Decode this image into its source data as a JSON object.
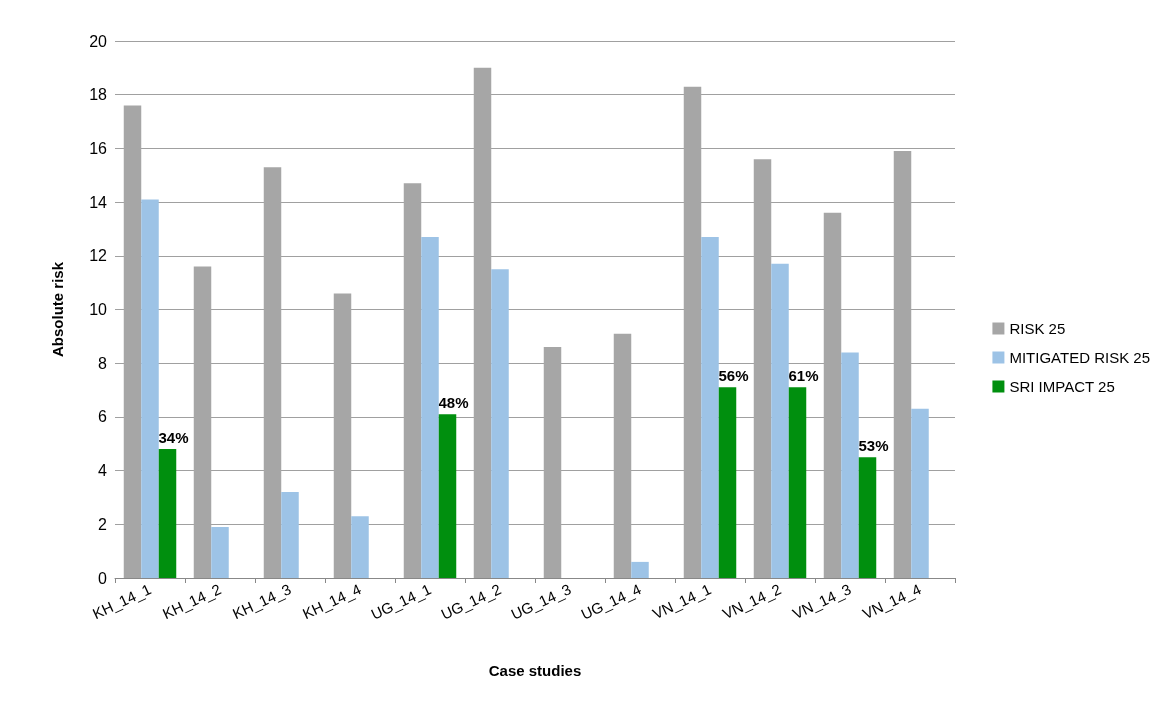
{
  "chart_data": {
    "type": "bar",
    "xlabel": "Case studies",
    "ylabel": "Absolute risk",
    "categories": [
      "KH_14_1",
      "KH_14_2",
      "KH_14_3",
      "KH_14_4",
      "UG_14_1",
      "UG_14_2",
      "UG_14_3",
      "UG_14_4",
      "VN_14_1",
      "VN_14_2",
      "VN_14_3",
      "VN_14_4"
    ],
    "series": [
      {
        "name": "RISK 25",
        "color": "#a6a6a6",
        "values": [
          17.6,
          11.6,
          15.3,
          10.6,
          14.7,
          19.0,
          8.6,
          9.1,
          18.3,
          15.6,
          13.6,
          15.9
        ]
      },
      {
        "name": "MITIGATED RISK 25",
        "color": "#9dc3e6",
        "values": [
          14.1,
          1.9,
          3.2,
          2.3,
          12.7,
          11.5,
          null,
          0.6,
          12.7,
          11.7,
          8.4,
          6.3
        ]
      },
      {
        "name": "SRI IMPACT 25",
        "color": "#008f0e",
        "values": [
          4.8,
          null,
          null,
          null,
          6.1,
          null,
          null,
          null,
          7.1,
          7.1,
          4.5,
          null
        ]
      }
    ],
    "annotations": [
      "34%",
      "48%",
      "56%",
      "61%",
      "53%"
    ],
    "ylim": [
      0,
      20
    ],
    "yticks": [
      0,
      2,
      4,
      6,
      8,
      10,
      12,
      14,
      16,
      18,
      20
    ],
    "grid": "y",
    "legend": "right"
  }
}
